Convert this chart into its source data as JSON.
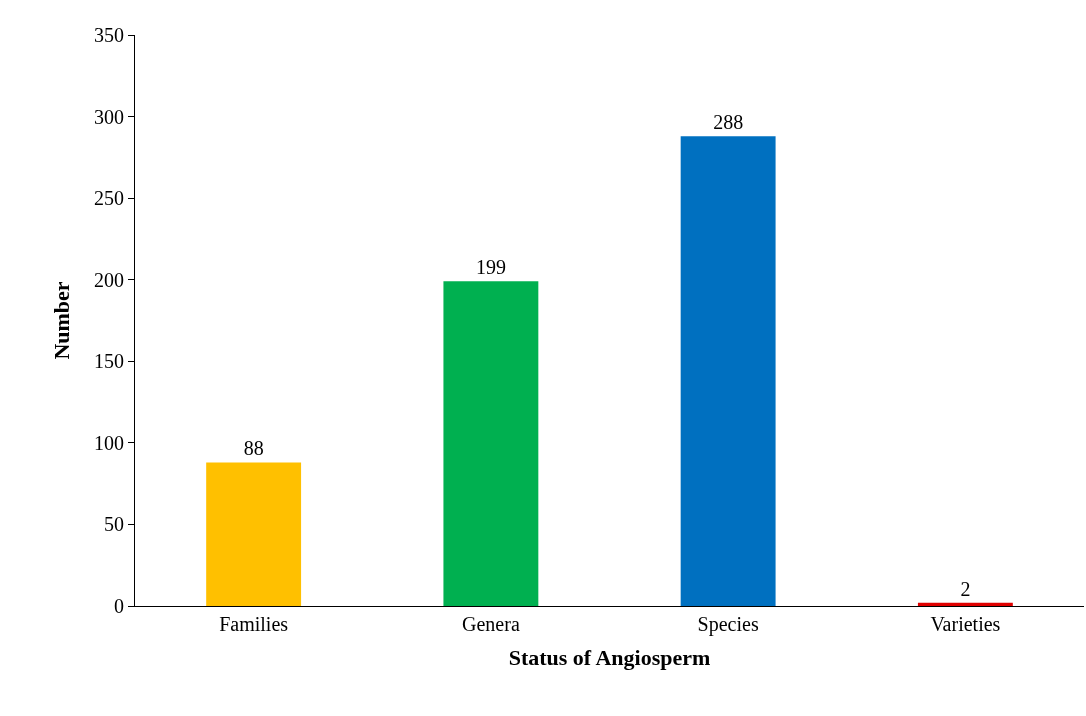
{
  "chart_data": {
    "type": "bar",
    "xlabel": "Status of Angiosperm",
    "ylabel": "Number",
    "categories": [
      "Families",
      "Genera",
      "Species",
      "Varieties"
    ],
    "values": [
      88,
      199,
      288,
      2
    ],
    "colors": [
      "#ffc000",
      "#00b050",
      "#0070c0",
      "#e00000"
    ],
    "ylim": [
      0,
      350
    ],
    "yticks": [
      0,
      50,
      100,
      150,
      200,
      250,
      300,
      350
    ],
    "data_labels": true
  }
}
